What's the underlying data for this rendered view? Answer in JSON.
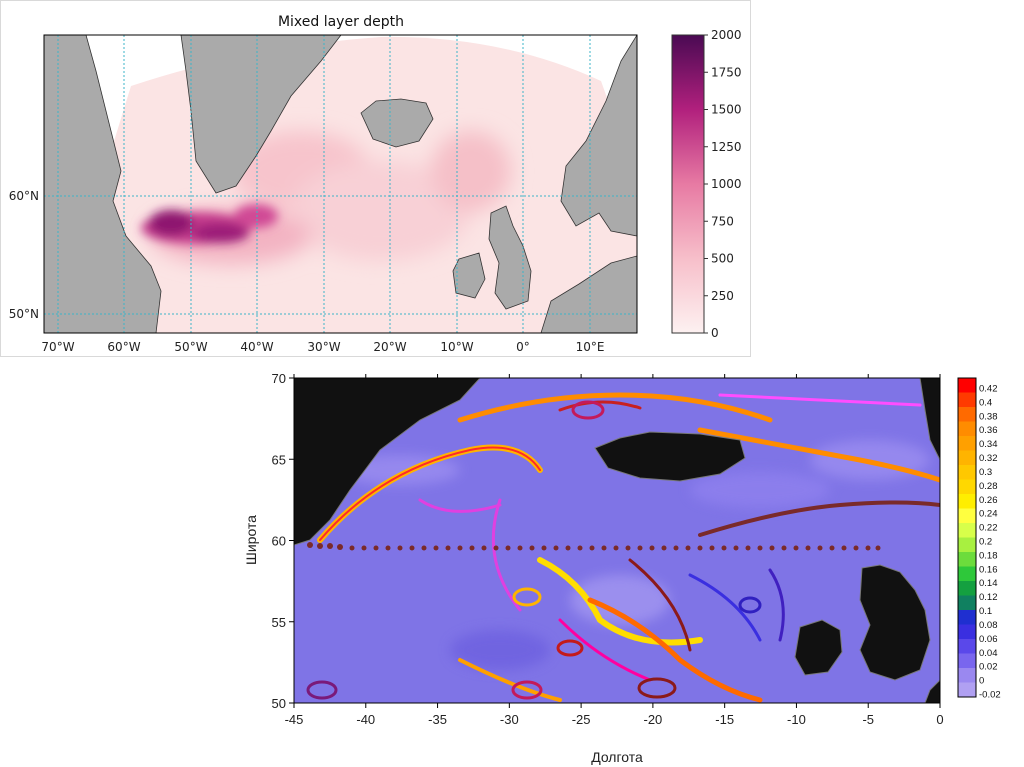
{
  "chart_data": [
    {
      "type": "heatmap",
      "title": "Mixed layer depth",
      "x_ticks": [
        "70°W",
        "60°W",
        "50°W",
        "40°W",
        "30°W",
        "20°W",
        "10°W",
        "0°",
        "10°E"
      ],
      "y_ticks": [
        "60°N",
        "50°N"
      ],
      "xlim": [
        -72,
        17
      ],
      "ylim": [
        48,
        73
      ],
      "colorbar": {
        "ticks": [
          0,
          250,
          500,
          750,
          1000,
          1250,
          1500,
          1750,
          2000
        ],
        "min": 0,
        "max": 2000,
        "colors": [
          "#fdf1f1",
          "#f7bfca",
          "#e77aa3",
          "#b1207d",
          "#4a0a53"
        ]
      },
      "peak_region": {
        "lon_range": [
          -56,
          -38
        ],
        "lat_range": [
          56.5,
          59.8
        ],
        "max_value": 2000
      },
      "colors": {
        "land": "#aaaaaa",
        "grid": "#3cb4c8",
        "outside": "#ffffff"
      }
    },
    {
      "type": "heatmap",
      "xlabel": "Долгота",
      "ylabel": "Широта",
      "x_ticks": [
        -45,
        -40,
        -35,
        -30,
        -25,
        -20,
        -15,
        -10,
        -5,
        0
      ],
      "y_ticks": [
        50,
        55,
        60,
        65,
        70
      ],
      "xlim": [
        -45,
        0
      ],
      "ylim": [
        50,
        70
      ],
      "colorbar": {
        "ticks": [
          "0.42",
          "0.4",
          "0.38",
          "0.36",
          "0.34",
          "0.32",
          "0.3",
          "0.28",
          "0.26",
          "0.24",
          "0.22",
          "0.2",
          "0.18",
          "0.16",
          "0.14",
          "0.12",
          "0.1",
          "0.08",
          "0.06",
          "0.04",
          "0.02",
          "0",
          "-0.02"
        ],
        "colors": [
          "#ff0000",
          "#ff3a00",
          "#ff6a00",
          "#ff8c00",
          "#ffa000",
          "#ffb400",
          "#ffc800",
          "#ffd800",
          "#ffee00",
          "#ffff40",
          "#d8ff4a",
          "#a8f040",
          "#6cdc3c",
          "#2ec83a",
          "#14a040",
          "#108060",
          "#1f2fd0",
          "#3a2fe0",
          "#5a48ea",
          "#7966ee",
          "#9a88f0",
          "#b0a0f2"
        ]
      },
      "section_line": {
        "lat": 59.5,
        "lon_range": [
          -44,
          -4
        ]
      },
      "colors": {
        "land": "#111111",
        "background": "#7f74e6",
        "section": "#7a2a2a"
      }
    }
  ]
}
